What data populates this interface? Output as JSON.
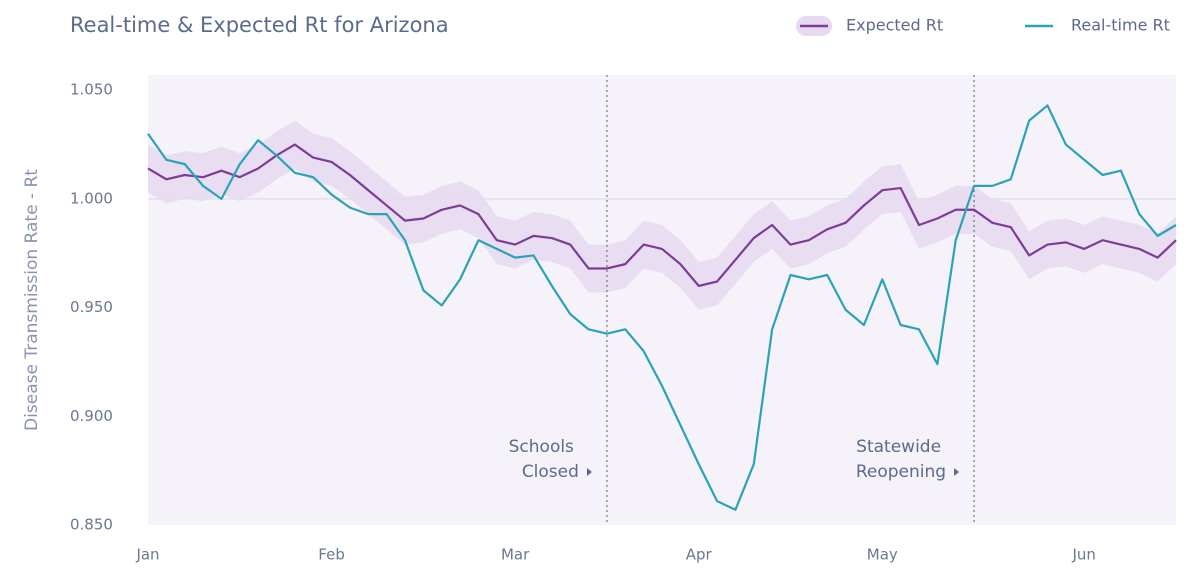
{
  "chart_data": {
    "type": "line",
    "title": "Real-time & Expected Rt for Arizona",
    "ylabel": "Disease Transmission Rate - Rt",
    "categories": [
      "Jan",
      null,
      null,
      null,
      null,
      null,
      null,
      null,
      null,
      null,
      "Feb",
      null,
      null,
      null,
      null,
      null,
      null,
      null,
      null,
      null,
      "Mar",
      null,
      null,
      null,
      null,
      null,
      null,
      null,
      null,
      null,
      "Apr",
      null,
      null,
      null,
      null,
      null,
      null,
      null,
      null,
      null,
      "May",
      null,
      null,
      null,
      null,
      null,
      null,
      null,
      null,
      null,
      null,
      "Jun",
      null,
      null,
      null,
      null,
      null
    ],
    "series": [
      {
        "name": "Expected Rt",
        "color": "#7d3c98",
        "band_color": "#e6d9f0",
        "band": 0.011,
        "values": [
          1.014,
          1.009,
          1.011,
          1.01,
          1.013,
          1.01,
          1.014,
          1.02,
          1.025,
          1.019,
          1.017,
          1.011,
          1.004,
          0.997,
          0.99,
          0.991,
          0.995,
          0.997,
          0.993,
          0.981,
          0.979,
          0.983,
          0.982,
          0.979,
          0.968,
          0.968,
          0.97,
          0.979,
          0.977,
          0.97,
          0.96,
          0.962,
          0.972,
          0.982,
          0.988,
          0.979,
          0.981,
          0.986,
          0.989,
          0.997,
          1.004,
          1.005,
          0.988,
          0.991,
          0.995,
          0.995,
          0.989,
          0.987,
          0.974,
          0.979,
          0.98,
          0.977,
          0.981,
          0.979,
          0.977,
          0.973,
          0.981
        ]
      },
      {
        "name": "Real-time Rt",
        "color": "#2ba3b7",
        "values": [
          1.03,
          1.018,
          1.016,
          1.006,
          1.0,
          1.016,
          1.027,
          1.02,
          1.012,
          1.01,
          1.002,
          0.996,
          0.993,
          0.993,
          0.981,
          0.958,
          0.951,
          0.963,
          0.981,
          0.977,
          0.973,
          0.974,
          0.96,
          0.947,
          0.94,
          0.938,
          0.94,
          0.93,
          0.914,
          0.896,
          0.878,
          0.861,
          0.857,
          0.878,
          0.94,
          0.965,
          0.963,
          0.965,
          0.949,
          0.942,
          0.963,
          0.942,
          0.94,
          0.924,
          0.981,
          1.006,
          1.006,
          1.009,
          1.036,
          1.043,
          1.025,
          1.018,
          1.011,
          1.013,
          0.993,
          0.983,
          0.988
        ]
      }
    ],
    "ylim": [
      0.85,
      1.057
    ],
    "yticks": [
      {
        "value": 0.85,
        "label": "0.850"
      },
      {
        "value": 0.9,
        "label": "0.900"
      },
      {
        "value": 0.95,
        "label": "0.950"
      },
      {
        "value": 1.0,
        "label": "1.000"
      },
      {
        "value": 1.05,
        "label": "1.050"
      }
    ],
    "grid_at": [
      {
        "value": 1.0,
        "label": "1.000"
      }
    ],
    "annotations": [
      {
        "index": 25,
        "lines": [
          "Schools",
          "Closed"
        ]
      },
      {
        "index": 45,
        "lines": [
          "Statewide",
          "Reopening"
        ]
      }
    ],
    "legend": "top-right"
  }
}
